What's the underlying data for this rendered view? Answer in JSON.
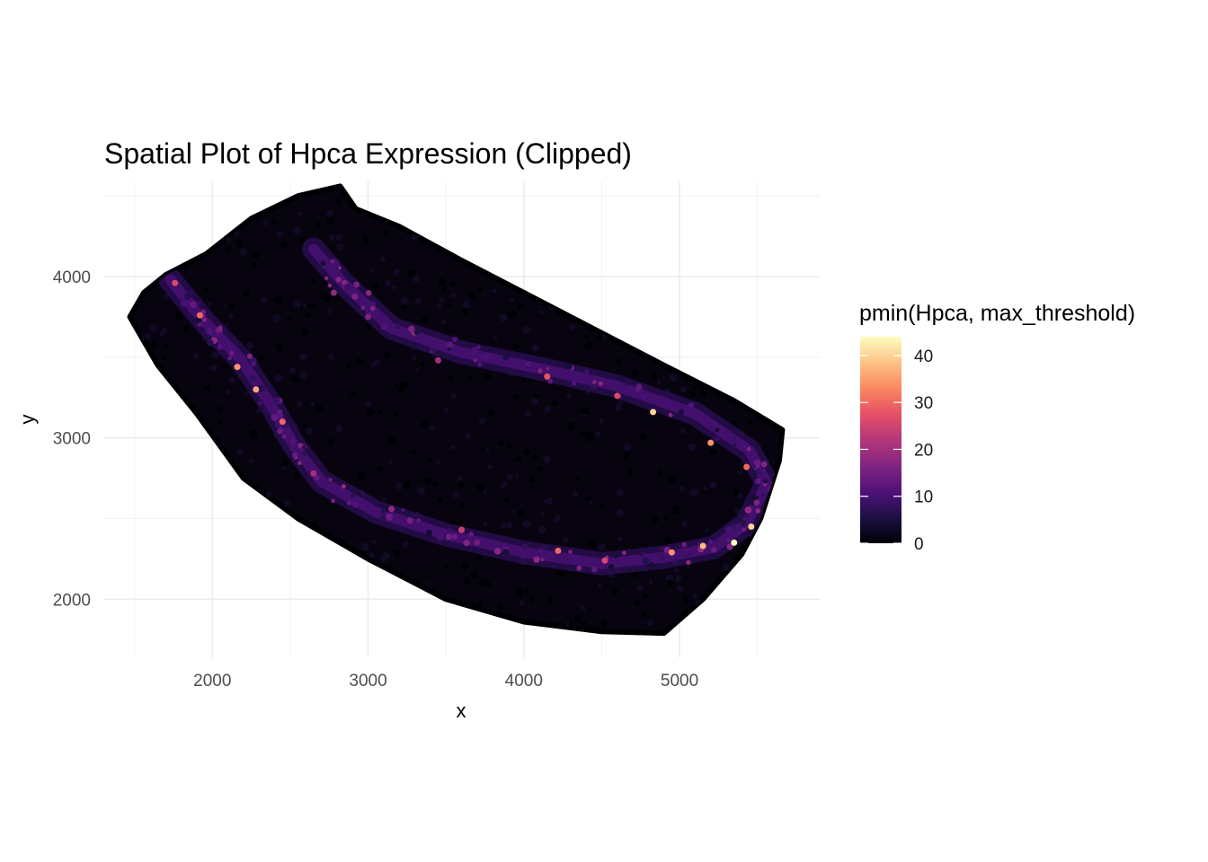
{
  "chart_data": {
    "type": "scatter",
    "title": "Spatial Plot of Hpca Expression (Clipped)",
    "xlabel": "x",
    "ylabel": "y",
    "xlim": [
      1300,
      5900
    ],
    "ylim": [
      1640,
      4590
    ],
    "x_ticks": [
      2000,
      3000,
      4000,
      5000
    ],
    "y_ticks": [
      2000,
      3000,
      4000
    ],
    "grid": true,
    "color_scale": {
      "name": "magma",
      "title": "pmin(Hpca, max_threshold)",
      "min": 0,
      "max": 44,
      "ticks": [
        0,
        10,
        20,
        30,
        40
      ],
      "stops": [
        "#000004",
        "#1c1044",
        "#4f127b",
        "#812581",
        "#b5367a",
        "#e55064",
        "#fb8761",
        "#fec287",
        "#fcfdbf"
      ]
    },
    "legend_position": "right",
    "tissue_outline": [
      [
        1470,
        3750
      ],
      [
        1560,
        3900
      ],
      [
        1700,
        4010
      ],
      [
        1960,
        4140
      ],
      [
        2250,
        4360
      ],
      [
        2550,
        4500
      ],
      [
        2820,
        4560
      ],
      [
        2920,
        4420
      ],
      [
        3200,
        4310
      ],
      [
        3600,
        4100
      ],
      [
        4200,
        3800
      ],
      [
        4900,
        3450
      ],
      [
        5350,
        3230
      ],
      [
        5660,
        3050
      ],
      [
        5640,
        2860
      ],
      [
        5520,
        2500
      ],
      [
        5400,
        2280
      ],
      [
        5150,
        2000
      ],
      [
        4900,
        1790
      ],
      [
        4500,
        1800
      ],
      [
        4000,
        1860
      ],
      [
        3500,
        2000
      ],
      [
        3000,
        2250
      ],
      [
        2550,
        2500
      ],
      [
        2200,
        2750
      ],
      [
        1900,
        3150
      ],
      [
        1650,
        3450
      ],
      [
        1470,
        3750
      ]
    ],
    "expression_band": [
      [
        1730,
        3980
      ],
      [
        1950,
        3720
      ],
      [
        2180,
        3490
      ],
      [
        2380,
        3200
      ],
      [
        2520,
        2960
      ],
      [
        2700,
        2730
      ],
      [
        3050,
        2540
      ],
      [
        3500,
        2400
      ],
      [
        4000,
        2290
      ],
      [
        4500,
        2220
      ],
      [
        4900,
        2260
      ],
      [
        5220,
        2320
      ],
      [
        5430,
        2470
      ],
      [
        5560,
        2720
      ],
      [
        5450,
        2920
      ],
      [
        5100,
        3150
      ],
      [
        4600,
        3320
      ],
      [
        4150,
        3420
      ],
      [
        3600,
        3530
      ],
      [
        3150,
        3680
      ],
      [
        2850,
        3950
      ],
      [
        2650,
        4170
      ]
    ],
    "hotspots": [
      {
        "x": 1760,
        "y": 3960,
        "value": 26
      },
      {
        "x": 1920,
        "y": 3760,
        "value": 30
      },
      {
        "x": 2160,
        "y": 3440,
        "value": 34
      },
      {
        "x": 2280,
        "y": 3300,
        "value": 36
      },
      {
        "x": 2450,
        "y": 3100,
        "value": 30
      },
      {
        "x": 2650,
        "y": 2780,
        "value": 20
      },
      {
        "x": 3150,
        "y": 2560,
        "value": 18
      },
      {
        "x": 3600,
        "y": 2430,
        "value": 24
      },
      {
        "x": 4220,
        "y": 2300,
        "value": 30
      },
      {
        "x": 4520,
        "y": 2240,
        "value": 26
      },
      {
        "x": 4950,
        "y": 2290,
        "value": 34
      },
      {
        "x": 5150,
        "y": 2330,
        "value": 38
      },
      {
        "x": 5350,
        "y": 2350,
        "value": 44
      },
      {
        "x": 5460,
        "y": 2450,
        "value": 40
      },
      {
        "x": 5430,
        "y": 2820,
        "value": 30
      },
      {
        "x": 5200,
        "y": 2970,
        "value": 34
      },
      {
        "x": 4830,
        "y": 3160,
        "value": 40
      },
      {
        "x": 4600,
        "y": 3260,
        "value": 26
      },
      {
        "x": 4150,
        "y": 3380,
        "value": 28
      },
      {
        "x": 3450,
        "y": 3480,
        "value": 20
      },
      {
        "x": 2780,
        "y": 3900,
        "value": 18
      },
      {
        "x": 3000,
        "y": 3750,
        "value": 16
      }
    ]
  }
}
